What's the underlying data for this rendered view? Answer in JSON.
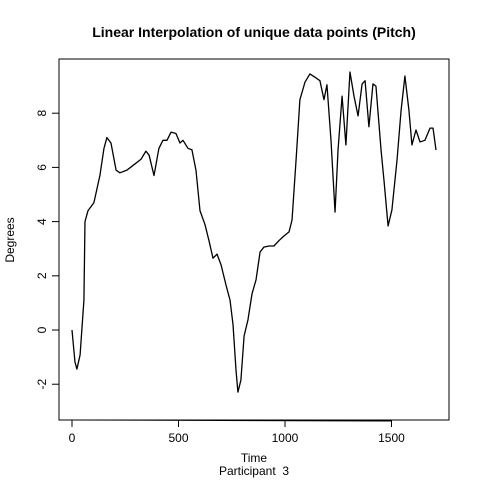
{
  "chart_data": {
    "type": "line",
    "title": "Linear Interpolation of unique data points (Pitch)",
    "x_label": "Time",
    "y_label": "Degrees",
    "subtitle": "Participant  3",
    "xlim": [
      -61,
      1770
    ],
    "ylim": [
      -3.32,
      10.0
    ],
    "xticks": [
      0,
      500,
      1000,
      1500
    ],
    "yticks": [
      -2,
      0,
      2,
      4,
      6,
      8
    ],
    "grid": false,
    "series": [
      {
        "name": "Pitch",
        "color": "#000000",
        "x": [
          0,
          14,
          23,
          38,
          56,
          61,
          75,
          103,
          131,
          150,
          164,
          183,
          207,
          225,
          258,
          291,
          324,
          347,
          362,
          385,
          408,
          427,
          446,
          465,
          488,
          507,
          521,
          545,
          563,
          582,
          601,
          624,
          643,
          662,
          681,
          700,
          723,
          742,
          756,
          770,
          779,
          793,
          808,
          826,
          845,
          864,
          883,
          901,
          925,
          948,
          972,
          995,
          1019,
          1033,
          1052,
          1070,
          1094,
          1117,
          1146,
          1164,
          1183,
          1197,
          1216,
          1235,
          1249,
          1268,
          1286,
          1305,
          1324,
          1343,
          1362,
          1376,
          1394,
          1413,
          1427,
          1451,
          1465,
          1484,
          1502,
          1526,
          1545,
          1563,
          1582,
          1596,
          1615,
          1634,
          1657,
          1681,
          1695,
          1709
        ],
        "values": [
          0,
          -1.18,
          -1.44,
          -0.92,
          1.1,
          4.0,
          4.4,
          4.7,
          5.7,
          6.7,
          7.1,
          6.9,
          5.9,
          5.8,
          5.9,
          6.1,
          6.3,
          6.6,
          6.45,
          5.7,
          6.7,
          7.0,
          7.0,
          7.3,
          7.25,
          6.9,
          7.0,
          6.7,
          6.65,
          5.9,
          4.4,
          3.9,
          3.3,
          2.65,
          2.8,
          2.4,
          1.66,
          1.1,
          0.2,
          -1.48,
          -2.29,
          -1.85,
          -0.22,
          0.37,
          1.33,
          1.85,
          2.88,
          3.06,
          3.1,
          3.1,
          3.3,
          3.47,
          3.62,
          4.06,
          6.27,
          8.5,
          9.15,
          9.45,
          9.3,
          9.2,
          8.5,
          9.05,
          7.0,
          4.35,
          6.64,
          8.63,
          6.83,
          9.52,
          8.63,
          7.9,
          9.08,
          9.2,
          7.5,
          9.08,
          9.0,
          6.64,
          5.5,
          3.84,
          4.43,
          6.27,
          8.1,
          9.37,
          8.1,
          6.83,
          7.38,
          6.94,
          7.0,
          7.45,
          7.45,
          6.64
        ]
      }
    ]
  }
}
